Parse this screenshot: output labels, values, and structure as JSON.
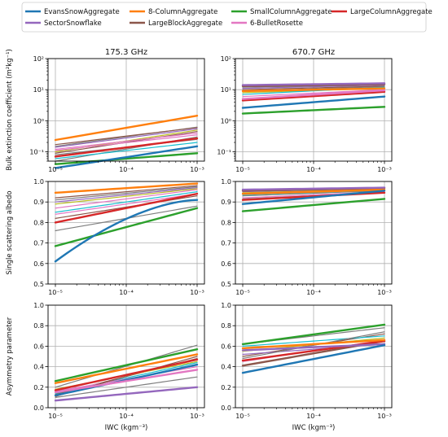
{
  "chart_data": {
    "type": "line",
    "legend": {
      "placement": "top",
      "columns": 4,
      "entries": [
        {
          "name": "EvansSnowAggregate",
          "color": "#1f77b4"
        },
        {
          "name": "8-ColumnAggregate",
          "color": "#ff7f0e"
        },
        {
          "name": "SmallColumnAggregate",
          "color": "#2ca02c"
        },
        {
          "name": "LargeColumnAggregate",
          "color": "#d62728"
        },
        {
          "name": "SectorSnowflake",
          "color": "#9467bd"
        },
        {
          "name": "LargeBlockAggregate",
          "color": "#8c564b"
        },
        {
          "name": "6-BulletRosette",
          "color": "#e377c2"
        }
      ]
    },
    "x": {
      "label": "IWC (kgm⁻³)",
      "scale": "log",
      "lim": [
        1e-05,
        0.001
      ],
      "ticks": [
        1e-05,
        0.0001,
        0.001
      ],
      "tick_labels": [
        "10⁻⁵",
        "10⁻⁴",
        "10⁻³"
      ]
    },
    "grid": true,
    "columns": [
      {
        "title": "175.3 GHz"
      },
      {
        "title": "670.7 GHz"
      }
    ],
    "rows": [
      {
        "ylabel": "Bulk extinction coefficient (m²kg⁻¹)",
        "yscale": "log",
        "ylim": [
          0.05,
          100
        ],
        "yticks": [
          0.1,
          1,
          10,
          100
        ],
        "ytick_labels": [
          "10⁻¹",
          "10⁰",
          "10¹",
          "10²"
        ]
      },
      {
        "ylabel": "Single scattering albedo",
        "yscale": "linear",
        "ylim": [
          0.5,
          1.0
        ],
        "yticks": [
          0.5,
          0.6,
          0.7,
          0.8,
          0.9,
          1.0
        ],
        "ytick_labels": [
          "0.5",
          "0.6",
          "0.7",
          "0.8",
          "0.9",
          "1.0"
        ]
      },
      {
        "ylabel": "Asymmetry parameter",
        "yscale": "linear",
        "ylim": [
          0.0,
          1.0
        ],
        "yticks": [
          0.0,
          0.2,
          0.4,
          0.6,
          0.8,
          1.0
        ],
        "ytick_labels": [
          "0.0",
          "0.2",
          "0.4",
          "0.6",
          "0.8",
          "1.0"
        ]
      }
    ],
    "panels": [
      {
        "row": 0,
        "col": 0,
        "series": [
          {
            "color": "#7f7f7f",
            "width": 1.2,
            "y": [
              0.05,
              0.3
            ]
          },
          {
            "color": "#17becf",
            "width": 1.2,
            "y": [
              0.06,
              0.2
            ]
          },
          {
            "color": "#8c564b",
            "width": 1.2,
            "y": [
              0.09,
              0.45
            ]
          },
          {
            "color": "#bcbd22",
            "width": 1.2,
            "y": [
              0.1,
              0.5
            ]
          },
          {
            "color": "#e377c2",
            "width": 1.2,
            "y": [
              0.12,
              0.4
            ]
          },
          {
            "color": "#9467bd",
            "width": 1.2,
            "y": [
              0.14,
              0.55
            ]
          },
          {
            "color": "#7f7f7f",
            "width": 1.2,
            "y": [
              0.15,
              0.62
            ]
          },
          {
            "color": "#8c564b",
            "width": 1.2,
            "y": [
              0.17,
              0.6
            ]
          },
          {
            "color": "#e377c2",
            "width": 1.2,
            "y": [
              0.11,
              0.35
            ]
          },
          {
            "color": "#7f7f7f",
            "width": 1.2,
            "y": [
              0.08,
              0.25
            ]
          },
          {
            "color": "#d62728",
            "width": 2.4,
            "y": [
              0.07,
              0.27
            ]
          },
          {
            "color": "#2ca02c",
            "width": 2.4,
            "y": [
              0.04,
              0.09
            ]
          },
          {
            "color": "#1f77b4",
            "width": 2.4,
            "y": [
              0.03,
              0.15
            ]
          },
          {
            "color": "#ff7f0e",
            "width": 2.4,
            "y": [
              0.24,
              1.45
            ]
          }
        ]
      },
      {
        "row": 0,
        "col": 1,
        "series": [
          {
            "color": "#7f7f7f",
            "width": 1.2,
            "y": [
              9.0,
              12.5
            ]
          },
          {
            "color": "#8c564b",
            "width": 1.2,
            "y": [
              10.0,
              13.0
            ]
          },
          {
            "color": "#9467bd",
            "width": 1.2,
            "y": [
              11.0,
              14.0
            ]
          },
          {
            "color": "#bcbd22",
            "width": 1.2,
            "y": [
              8.0,
              11.0
            ]
          },
          {
            "color": "#e377c2",
            "width": 1.2,
            "y": [
              6.0,
              10.0
            ]
          },
          {
            "color": "#17becf",
            "width": 1.2,
            "y": [
              7.0,
              12.0
            ]
          },
          {
            "color": "#7f7f7f",
            "width": 1.2,
            "y": [
              12.0,
              14.5
            ]
          },
          {
            "color": "#8c564b",
            "width": 2.4,
            "y": [
              13.0,
              15.0
            ]
          },
          {
            "color": "#9467bd",
            "width": 2.4,
            "y": [
              14.0,
              16.0
            ]
          },
          {
            "color": "#ff7f0e",
            "width": 2.4,
            "y": [
              9.0,
              11.0
            ]
          },
          {
            "color": "#d62728",
            "width": 2.4,
            "y": [
              4.5,
              8.5
            ]
          },
          {
            "color": "#e377c2",
            "width": 2.4,
            "y": [
              5.0,
              9.5
            ]
          },
          {
            "color": "#1f77b4",
            "width": 2.4,
            "y": [
              2.6,
              6.0
            ]
          },
          {
            "color": "#2ca02c",
            "width": 2.4,
            "y": [
              1.7,
              2.8
            ]
          }
        ]
      },
      {
        "row": 1,
        "col": 0,
        "series": [
          {
            "color": "#7f7f7f",
            "width": 1.2,
            "y": [
              0.76,
              0.88
            ]
          },
          {
            "color": "#8c564b",
            "width": 1.2,
            "y": [
              0.82,
              0.93
            ]
          },
          {
            "color": "#17becf",
            "width": 1.2,
            "y": [
              0.85,
              0.95
            ]
          },
          {
            "color": "#e377c2",
            "width": 1.2,
            "y": [
              0.87,
              0.96
            ]
          },
          {
            "color": "#bcbd22",
            "width": 1.2,
            "y": [
              0.89,
              0.965
            ]
          },
          {
            "color": "#9467bd",
            "width": 1.2,
            "y": [
              0.9,
              0.97
            ]
          },
          {
            "color": "#7f7f7f",
            "width": 1.2,
            "y": [
              0.91,
              0.975
            ]
          },
          {
            "color": "#8c564b",
            "width": 1.2,
            "y": [
              0.92,
              0.98
            ]
          },
          {
            "color": "#e377c2",
            "width": 1.2,
            "y": [
              0.84,
              0.94
            ]
          },
          {
            "color": "#d62728",
            "width": 2.4,
            "y": [
              0.8,
              0.94
            ]
          },
          {
            "color": "#ff7f0e",
            "width": 2.4,
            "y": [
              0.945,
              0.99
            ]
          },
          {
            "color": "#2ca02c",
            "width": 2.4,
            "y": [
              0.685,
              0.87
            ]
          },
          {
            "color": "#1f77b4",
            "width": 2.4,
            "y": [
              0.61,
              0.91
            ],
            "curve": "concave"
          }
        ]
      },
      {
        "row": 1,
        "col": 1,
        "series": [
          {
            "color": "#7f7f7f",
            "width": 1.2,
            "y": [
              0.93,
              0.955
            ]
          },
          {
            "color": "#8c564b",
            "width": 1.2,
            "y": [
              0.94,
              0.96
            ]
          },
          {
            "color": "#9467bd",
            "width": 1.2,
            "y": [
              0.95,
              0.965
            ]
          },
          {
            "color": "#bcbd22",
            "width": 1.2,
            "y": [
              0.945,
              0.962
            ]
          },
          {
            "color": "#e377c2",
            "width": 1.2,
            "y": [
              0.92,
              0.95
            ]
          },
          {
            "color": "#17becf",
            "width": 1.2,
            "y": [
              0.935,
              0.958
            ]
          },
          {
            "color": "#7f7f7f",
            "width": 1.2,
            "y": [
              0.915,
              0.945
            ]
          },
          {
            "color": "#8c564b",
            "width": 2.4,
            "y": [
              0.955,
              0.968
            ]
          },
          {
            "color": "#9467bd",
            "width": 2.4,
            "y": [
              0.96,
              0.97
            ]
          },
          {
            "color": "#d62728",
            "width": 2.4,
            "y": [
              0.91,
              0.945
            ]
          },
          {
            "color": "#ff7f0e",
            "width": 2.4,
            "y": [
              0.94,
              0.96
            ]
          },
          {
            "color": "#1f77b4",
            "width": 2.4,
            "y": [
              0.89,
              0.955
            ]
          },
          {
            "color": "#2ca02c",
            "width": 2.4,
            "y": [
              0.855,
              0.915
            ]
          }
        ]
      },
      {
        "row": 2,
        "col": 0,
        "series": [
          {
            "color": "#7f7f7f",
            "width": 1.2,
            "y": [
              0.2,
              0.61
            ]
          },
          {
            "color": "#8c564b",
            "width": 1.2,
            "y": [
              0.13,
              0.48
            ]
          },
          {
            "color": "#17becf",
            "width": 1.2,
            "y": [
              0.14,
              0.44
            ]
          },
          {
            "color": "#e377c2",
            "width": 1.2,
            "y": [
              0.16,
              0.4
            ]
          },
          {
            "color": "#7f7f7f",
            "width": 1.2,
            "y": [
              0.1,
              0.3
            ]
          },
          {
            "color": "#8c564b",
            "width": 1.2,
            "y": [
              0.11,
              0.5
            ]
          },
          {
            "color": "#bcbd22",
            "width": 1.2,
            "y": [
              0.18,
              0.45
            ]
          },
          {
            "color": "#9467bd",
            "width": 2.4,
            "y": [
              0.07,
              0.2
            ]
          },
          {
            "color": "#1f77b4",
            "width": 2.4,
            "y": [
              0.12,
              0.42
            ]
          },
          {
            "color": "#d62728",
            "width": 2.4,
            "y": [
              0.17,
              0.47
            ]
          },
          {
            "color": "#e377c2",
            "width": 2.4,
            "y": [
              0.15,
              0.37
            ]
          },
          {
            "color": "#ff7f0e",
            "width": 2.4,
            "y": [
              0.24,
              0.52
            ]
          },
          {
            "color": "#2ca02c",
            "width": 2.4,
            "y": [
              0.26,
              0.57
            ]
          }
        ]
      },
      {
        "row": 2,
        "col": 1,
        "series": [
          {
            "color": "#7f7f7f",
            "width": 1.2,
            "y": [
              0.62,
              0.78
            ]
          },
          {
            "color": "#8c564b",
            "width": 1.2,
            "y": [
              0.5,
              0.72
            ]
          },
          {
            "color": "#17becf",
            "width": 1.2,
            "y": [
              0.6,
              0.7
            ]
          },
          {
            "color": "#e377c2",
            "width": 1.2,
            "y": [
              0.45,
              0.66
            ]
          },
          {
            "color": "#bcbd22",
            "width": 1.2,
            "y": [
              0.55,
              0.68
            ]
          },
          {
            "color": "#9467bd",
            "width": 1.2,
            "y": [
              0.52,
              0.62
            ]
          },
          {
            "color": "#7f7f7f",
            "width": 1.2,
            "y": [
              0.48,
              0.74
            ]
          },
          {
            "color": "#8c564b",
            "width": 2.4,
            "y": [
              0.41,
              0.65
            ]
          },
          {
            "color": "#d62728",
            "width": 2.4,
            "y": [
              0.46,
              0.65
            ]
          },
          {
            "color": "#ff7f0e",
            "width": 2.4,
            "y": [
              0.58,
              0.66
            ]
          },
          {
            "color": "#9467bd",
            "width": 2.4,
            "y": [
              0.56,
              0.62
            ]
          },
          {
            "color": "#1f77b4",
            "width": 2.4,
            "y": [
              0.34,
              0.61
            ]
          },
          {
            "color": "#2ca02c",
            "width": 2.4,
            "y": [
              0.62,
              0.81
            ]
          }
        ]
      }
    ]
  }
}
